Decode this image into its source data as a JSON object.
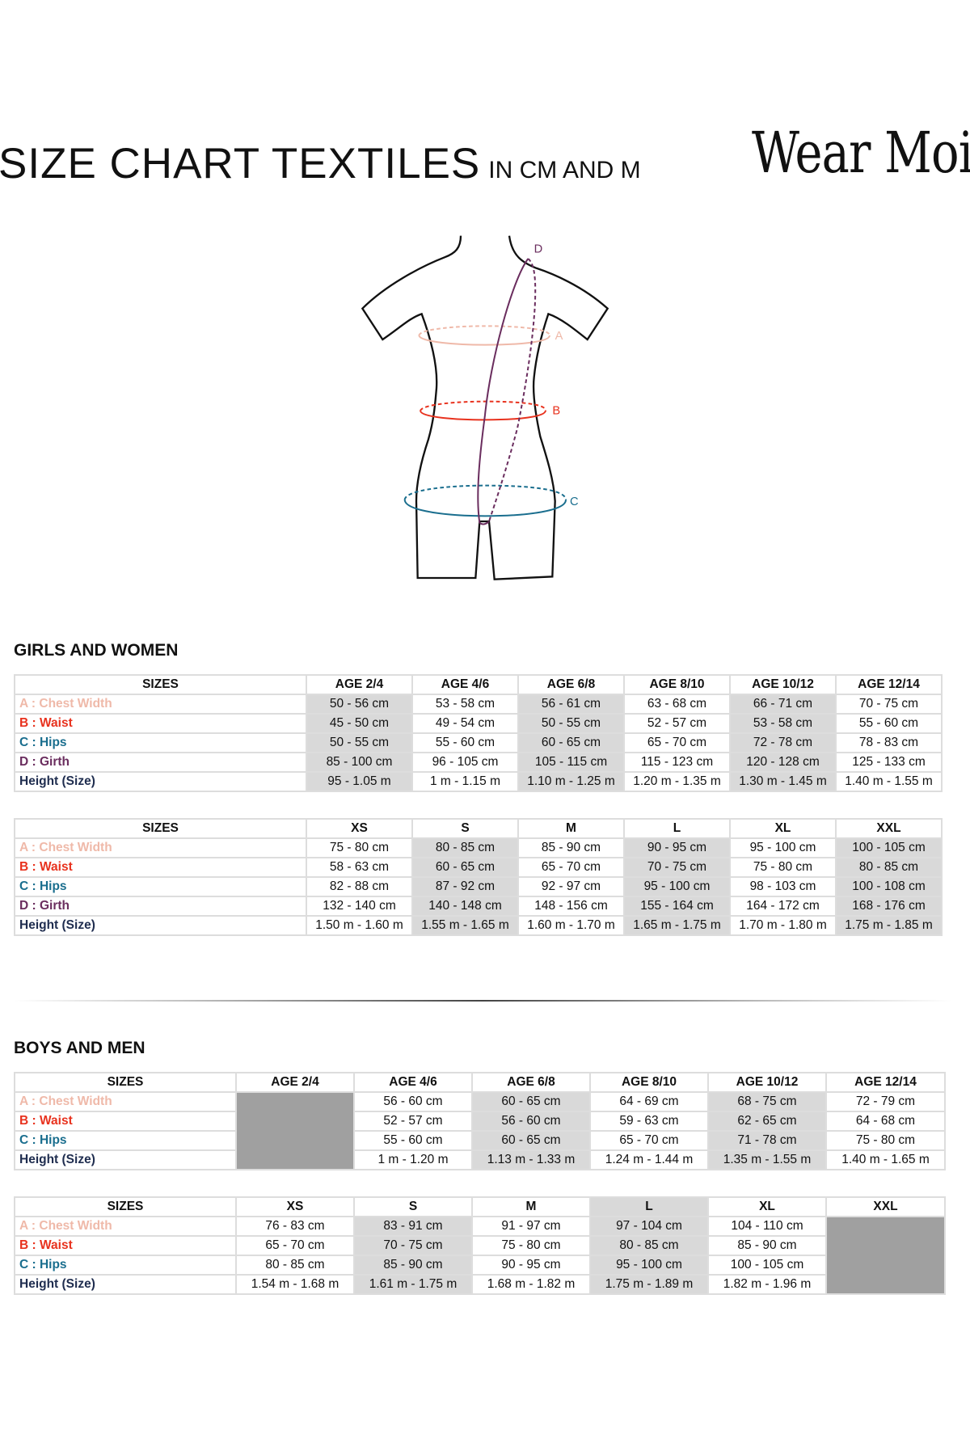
{
  "header": {
    "title": "SIZE CHART TEXTILES",
    "subtitle": "IN CM AND M",
    "logo_text": "Wear Moi"
  },
  "figure": {
    "labels": {
      "a": "A",
      "b": "B",
      "c": "C",
      "d": "D"
    }
  },
  "colors": {
    "chest": "#efb9a9",
    "waist": "#e8321e",
    "hips": "#1a6e8e",
    "girth": "#6a2d5e",
    "height": "#1f2d4f",
    "shade": "#d9d9d9",
    "dark_shade": "#a0a0a0"
  },
  "row_labels": {
    "sizes": "SIZES",
    "chest": "A : Chest Width",
    "waist": "B : Waist",
    "hips": "C : Hips",
    "girth": "D : Girth",
    "height": "Height (Size)"
  },
  "sections": {
    "girls": {
      "title": "GIRLS AND WOMEN",
      "tables": [
        {
          "columns": [
            "AGE 2/4",
            "AGE 4/6",
            "AGE 6/8",
            "AGE 8/10",
            "AGE 10/12",
            "AGE 12/14"
          ],
          "rows": {
            "chest": [
              "50 - 56 cm",
              "53 - 58 cm",
              "56 - 61 cm",
              "63 - 68 cm",
              "66 - 71 cm",
              "70 - 75 cm"
            ],
            "waist": [
              "45 - 50 cm",
              "49  - 54 cm",
              "50 - 55 cm",
              "52 - 57 cm",
              "53 - 58 cm",
              "55 - 60 cm"
            ],
            "hips": [
              "50 - 55 cm",
              "55 - 60 cm",
              "60 - 65 cm",
              "65 - 70 cm",
              "72 - 78 cm",
              "78 - 83 cm"
            ],
            "girth": [
              "85 - 100 cm",
              "96 - 105 cm",
              "105 - 115  cm",
              "115 - 123 cm",
              "120 - 128 cm",
              "125 - 133 cm"
            ],
            "height": [
              "95 - 1.05 m",
              "1 m - 1.15 m",
              "1.10 m - 1.25 m",
              "1.20 m - 1.35 m",
              "1.30 m - 1.45 m",
              "1.40 m - 1.55 m"
            ]
          }
        },
        {
          "columns": [
            "XS",
            "S",
            "M",
            "L",
            "XL",
            "XXL"
          ],
          "rows": {
            "chest": [
              "75 - 80 cm",
              "80 - 85 cm",
              "85 - 90 cm",
              "90 - 95 cm",
              "95 - 100 cm",
              "100 - 105 cm"
            ],
            "waist": [
              "58 - 63 cm",
              "60 - 65 cm",
              "65 - 70 cm",
              "70 - 75 cm",
              "75 - 80 cm",
              "80 - 85 cm"
            ],
            "hips": [
              "82 - 88 cm",
              "87 - 92 cm",
              "92 - 97 cm",
              "95 - 100 cm",
              "98 - 103 cm",
              "100 - 108 cm"
            ],
            "girth": [
              "132 - 140 cm",
              "140 - 148 cm",
              "148 - 156 cm",
              "155 - 164 cm",
              "164 - 172 cm",
              "168 - 176 cm"
            ],
            "height": [
              "1.50 m - 1.60 m",
              "1.55 m - 1.65 m",
              "1.60 m - 1.70 m",
              "1.65 m - 1.75 m",
              "1.70 m - 1.80 m",
              "1.75 m - 1.85 m"
            ]
          }
        }
      ]
    },
    "boys": {
      "title": "BOYS AND MEN",
      "tables": [
        {
          "columns": [
            "AGE 2/4",
            "AGE 4/6",
            "AGE 6/8",
            "AGE 8/10",
            "AGE 10/12",
            "AGE 12/14"
          ],
          "rows": {
            "chest": [
              "",
              "56 - 60 cm",
              "60 - 65 cm",
              "64 - 69 cm",
              "68 - 75 cm",
              "72 - 79 cm"
            ],
            "waist": [
              "",
              "52  - 57 cm",
              "56 - 60 cm",
              "59 - 63 cm",
              "62 - 65 cm",
              "64 - 68 cm"
            ],
            "hips": [
              "",
              "55 - 60 cm",
              "60 - 65 cm",
              "65 - 70 cm",
              "71 - 78 cm",
              "75 - 80 cm"
            ],
            "height": [
              "",
              "1 m - 1.20 m",
              "1.13 m - 1.33 m",
              "1.24 m - 1.44 m",
              "1.35 m - 1.55 m",
              "1.40 m - 1.65 m"
            ]
          }
        },
        {
          "columns": [
            "XS",
            "S",
            "M",
            "L",
            "XL",
            "XXL"
          ],
          "rows": {
            "chest": [
              "76 - 83 cm",
              "83 - 91 cm",
              "91 - 97 cm",
              "97 - 104 cm",
              "104 - 110 cm",
              ""
            ],
            "waist": [
              "65 - 70 cm",
              "70 - 75 cm",
              "75 - 80 cm",
              "80 - 85 cm",
              "85 - 90 cm",
              ""
            ],
            "hips": [
              "80 - 85 cm",
              "85 - 90 cm",
              "90 - 95 cm",
              "95 - 100 cm",
              "100 - 105 cm",
              ""
            ],
            "height": [
              "1.54 m - 1.68 m",
              "1.61 m - 1.75 m",
              "1.68 m - 1.82 m",
              "1.75 m - 1.89 m",
              "1.82 m - 1.96 m",
              ""
            ]
          }
        }
      ]
    }
  }
}
